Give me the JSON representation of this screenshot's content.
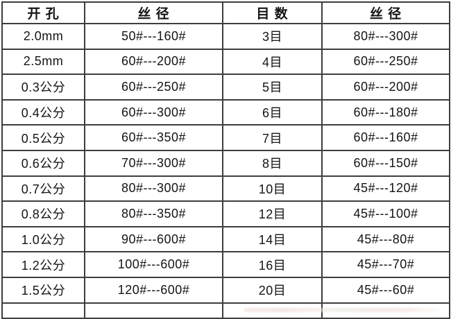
{
  "table": {
    "columns": [
      "开 孔",
      "丝 径",
      "目 数",
      "丝 径"
    ],
    "rows": [
      [
        "2.0mm",
        "50#---160#",
        "3目",
        "80#---300#"
      ],
      [
        "2.5mm",
        "60#---200#",
        "4目",
        "60#---250#"
      ],
      [
        "0.3公分",
        "60#---250#",
        "5目",
        "60#---200#"
      ],
      [
        "0.4公分",
        "60#---300#",
        "6目",
        "60#---180#"
      ],
      [
        "0.5公分",
        "60#---350#",
        "7目",
        "60#---160#"
      ],
      [
        "0.6公分",
        "70#---300#",
        "8目",
        "60#---150#"
      ],
      [
        "0.7公分",
        "80#---300#",
        "10目",
        "45#---120#"
      ],
      [
        "0.8公分",
        "80#---350#",
        "12目",
        "45#---100#"
      ],
      [
        "1.0公分",
        "90#---600#",
        "14目",
        "45#---80#"
      ],
      [
        "1.2公分",
        "100#---600#",
        "16目",
        "45#---70#"
      ],
      [
        "1.5公分",
        "120#---600#",
        "20目",
        "45#---60#"
      ]
    ]
  },
  "colors": {
    "background": "#ffffff",
    "border": "#3d3d3d",
    "text": "#141414"
  }
}
